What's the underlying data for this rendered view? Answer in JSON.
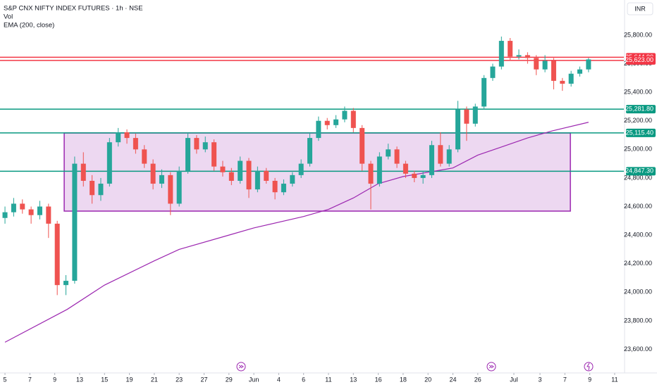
{
  "chart_data": {
    "type": "candlestick",
    "title": "S&P CNX NIFTY INDEX FUTURES · 1h · NSE",
    "indicators": [
      "Vol",
      "EMA (200, close)"
    ],
    "currency": "INR",
    "xlim": [
      -0.2,
      24.87
    ],
    "xticks": [
      {
        "value": 0,
        "label": "5"
      },
      {
        "value": 1,
        "label": "7"
      },
      {
        "value": 2,
        "label": "9"
      },
      {
        "value": 3,
        "label": "13"
      },
      {
        "value": 4,
        "label": "15"
      },
      {
        "value": 5,
        "label": "19"
      },
      {
        "value": 6,
        "label": "21"
      },
      {
        "value": 7,
        "label": "23"
      },
      {
        "value": 8,
        "label": "27"
      },
      {
        "value": 9,
        "label": "29"
      },
      {
        "value": 10,
        "label": "Jun"
      },
      {
        "value": 11,
        "label": "4"
      },
      {
        "value": 12,
        "label": "6"
      },
      {
        "value": 13,
        "label": "11"
      },
      {
        "value": 14,
        "label": "13"
      },
      {
        "value": 15,
        "label": "16"
      },
      {
        "value": 16,
        "label": "18"
      },
      {
        "value": 17,
        "label": "20"
      },
      {
        "value": 18,
        "label": "24"
      },
      {
        "value": 19,
        "label": "26"
      },
      {
        "value": 20.45,
        "label": "Jul"
      },
      {
        "value": 21.5,
        "label": "3"
      },
      {
        "value": 22.5,
        "label": "7"
      },
      {
        "value": 23.5,
        "label": "9"
      },
      {
        "value": 24.5,
        "label": "11"
      }
    ],
    "ylim": [
      23435,
      26046
    ],
    "yticks": [
      {
        "value": 23600,
        "label": "23,600.00"
      },
      {
        "value": 23800,
        "label": "23,800.00"
      },
      {
        "value": 24000,
        "label": "24,000.00"
      },
      {
        "value": 24200,
        "label": "24,200.00"
      },
      {
        "value": 24400,
        "label": "24,400.00"
      },
      {
        "value": 24600,
        "label": "24,600.00"
      },
      {
        "value": 24800,
        "label": "24,800.00"
      },
      {
        "value": 25000,
        "label": "25,000.00"
      },
      {
        "value": 25200,
        "label": "25,200.00"
      },
      {
        "value": 25400,
        "label": "25,400.00"
      },
      {
        "value": 25600,
        "label": "25,600.00"
      },
      {
        "value": 25800,
        "label": "25,800.00"
      }
    ],
    "up_color": "#26a69a",
    "down_color": "#ef5350",
    "candles": {
      "x": [
        0,
        0.35,
        0.7,
        1.05,
        1.4,
        1.75,
        2.1,
        2.45,
        2.8,
        3.15,
        3.5,
        3.85,
        4.2,
        4.55,
        4.9,
        5.25,
        5.6,
        5.95,
        6.3,
        6.65,
        7,
        7.35,
        7.7,
        8.05,
        8.4,
        8.75,
        9.1,
        9.45,
        9.8,
        10.15,
        10.5,
        10.85,
        11.2,
        11.55,
        11.9,
        12.25,
        12.6,
        12.95,
        13.3,
        13.65,
        14,
        14.35,
        14.7,
        15.05,
        15.4,
        15.75,
        16.1,
        16.45,
        16.8,
        17.15,
        17.5,
        17.85,
        18.2,
        18.55,
        18.9,
        19.25,
        19.6,
        19.95,
        20.3,
        20.65,
        21,
        21.35,
        21.7,
        22.05,
        22.4,
        22.75,
        23.1,
        23.45
      ],
      "open": [
        24520,
        24560,
        24620,
        24580,
        24540,
        24600,
        24480,
        24050,
        24080,
        24900,
        24780,
        24680,
        24760,
        25050,
        25120,
        25080,
        25000,
        24900,
        24760,
        24820,
        24620,
        24850,
        25080,
        25000,
        25050,
        24880,
        24840,
        24780,
        24920,
        24720,
        24850,
        24780,
        24700,
        24760,
        24820,
        24900,
        25080,
        25200,
        25170,
        25210,
        25270,
        25150,
        24900,
        24760,
        24950,
        25000,
        24900,
        24830,
        24800,
        24820,
        25030,
        24900,
        25000,
        25280,
        25180,
        25300,
        25500,
        25580,
        25760,
        25650,
        25660,
        25640,
        25560,
        25620,
        25480,
        25460,
        25530,
        25560
      ],
      "high": [
        24600,
        24660,
        24650,
        24600,
        24640,
        24620,
        24500,
        24120,
        24950,
        24980,
        24820,
        24800,
        25080,
        25150,
        25140,
        25110,
        25030,
        24930,
        24860,
        24840,
        24880,
        25110,
        25100,
        25090,
        25070,
        24920,
        24870,
        24950,
        24940,
        24880,
        24870,
        24800,
        24790,
        24840,
        24930,
        25110,
        25230,
        25220,
        25240,
        25300,
        25290,
        25170,
        24920,
        24980,
        25040,
        25020,
        24920,
        24850,
        24850,
        25060,
        25120,
        25030,
        25340,
        25300,
        25320,
        25520,
        25600,
        25790,
        25780,
        25700,
        25680,
        25660,
        25660,
        25640,
        25500,
        25550,
        25580,
        25640
      ],
      "low": [
        24480,
        24530,
        24550,
        24480,
        24510,
        24380,
        23980,
        23980,
        24060,
        24740,
        24620,
        24640,
        24740,
        25020,
        25040,
        24970,
        24870,
        24720,
        24730,
        24540,
        24600,
        24830,
        24970,
        24980,
        24850,
        24810,
        24750,
        24760,
        24660,
        24700,
        24760,
        24650,
        24680,
        24740,
        24800,
        24880,
        25060,
        25140,
        25150,
        25190,
        25120,
        24850,
        24580,
        24740,
        24930,
        24870,
        24800,
        24770,
        24760,
        24800,
        24880,
        24880,
        24980,
        25060,
        25160,
        25280,
        25480,
        25560,
        25620,
        25630,
        25600,
        25520,
        25540,
        25420,
        25410,
        25440,
        25510,
        25540
      ],
      "close": [
        24560,
        24620,
        24580,
        24540,
        24600,
        24480,
        24050,
        24080,
        24900,
        24780,
        24680,
        24760,
        25050,
        25120,
        25080,
        25000,
        24900,
        24760,
        24820,
        24620,
        24850,
        25080,
        25000,
        25050,
        24880,
        24840,
        24780,
        24920,
        24720,
        24850,
        24780,
        24700,
        24760,
        24820,
        24900,
        25080,
        25200,
        25170,
        25210,
        25270,
        25150,
        24900,
        24760,
        24950,
        25000,
        24900,
        24830,
        24800,
        24820,
        25030,
        24900,
        25000,
        25280,
        25180,
        25300,
        25500,
        25580,
        25760,
        25650,
        25660,
        25640,
        25560,
        25620,
        25480,
        25460,
        25530,
        25560,
        25630
      ]
    },
    "ema": {
      "color": "#9c27b0",
      "x": [
        0,
        2.5,
        4,
        6,
        7,
        9,
        10,
        12,
        13,
        14,
        15,
        16,
        17,
        18,
        19,
        20,
        21,
        22,
        23.45
      ],
      "values": [
        23650,
        23880,
        24050,
        24220,
        24300,
        24400,
        24450,
        24530,
        24580,
        24660,
        24760,
        24810,
        24840,
        24870,
        24960,
        25020,
        25080,
        25130,
        25190
      ]
    },
    "levels": [
      {
        "value": 25644.9,
        "label": "25,644.90",
        "color": "#f23645"
      },
      {
        "value": 25623,
        "label": "25,623.00",
        "color": "#f23645"
      },
      {
        "value": 25281.8,
        "label": "25,281.80",
        "color": "#089981"
      },
      {
        "value": 25115.4,
        "label": "25,115.40",
        "color": "#089981"
      },
      {
        "value": 24847.3,
        "label": "24,847.30",
        "color": "#089981"
      }
    ],
    "range_box": {
      "x": [
        2.38,
        22.72
      ],
      "y": [
        24568,
        25115
      ],
      "color": "#9c27b0"
    }
  }
}
